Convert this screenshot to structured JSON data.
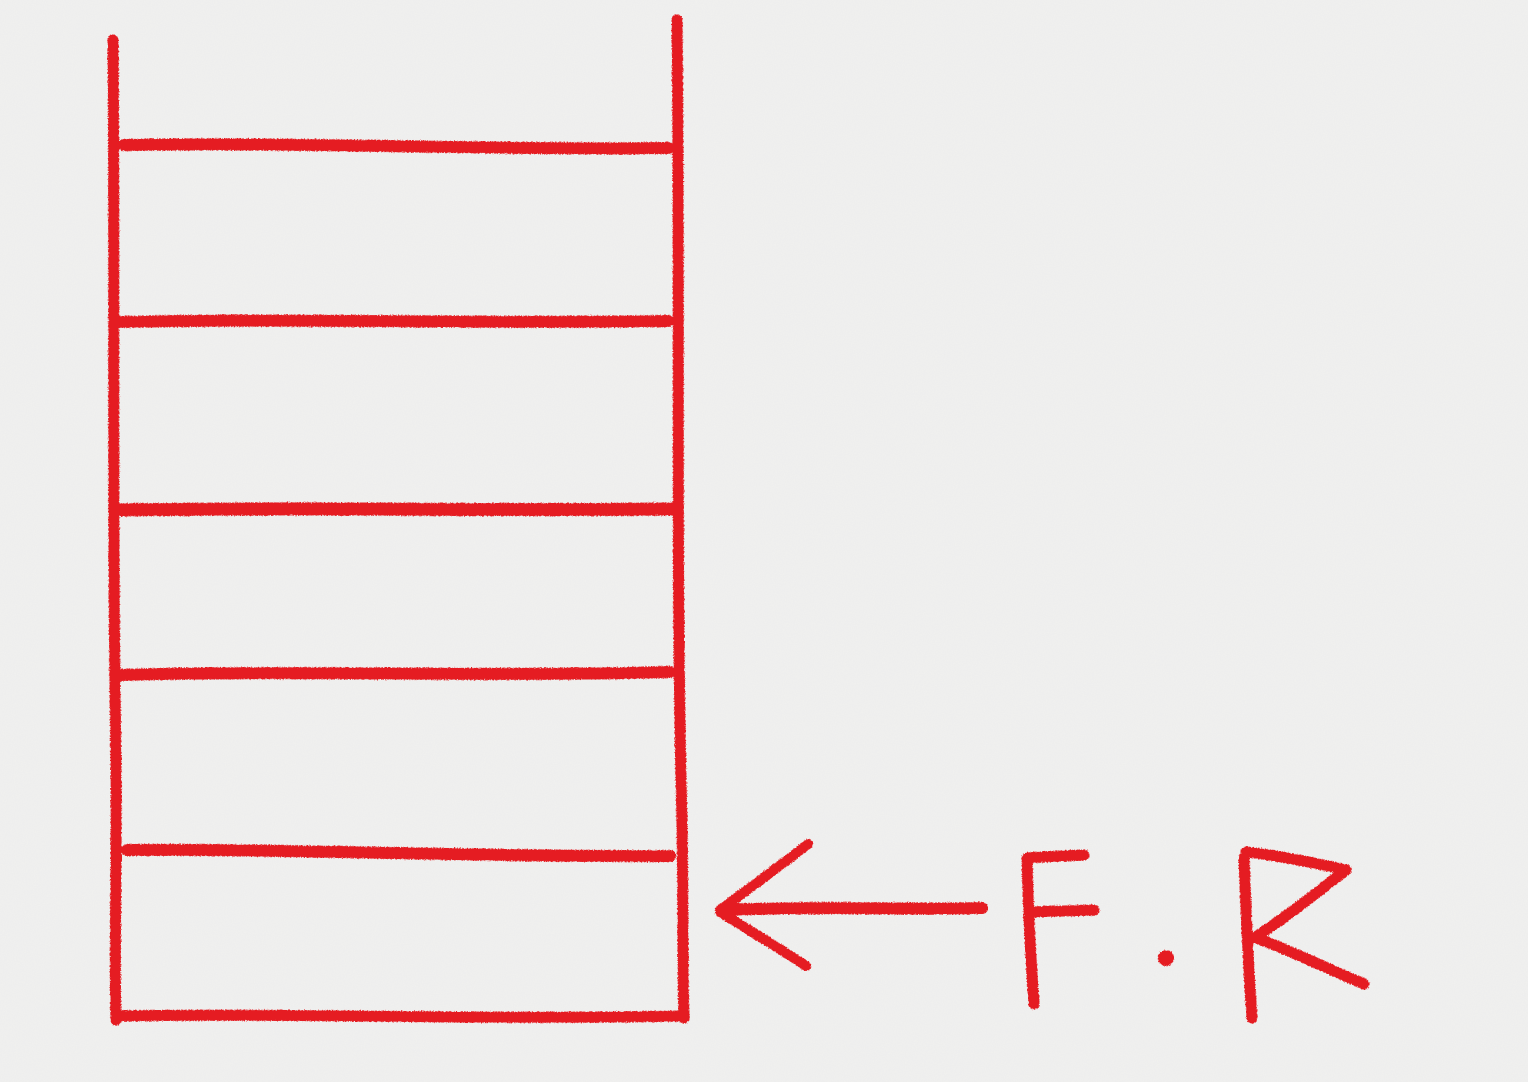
{
  "canvas": {
    "background_color": "#f1f1f0",
    "ink_color": "#e51d23"
  },
  "diagram": {
    "type": "hand-drawn-stack",
    "cells": 5,
    "pointer": {
      "target_cell": 5,
      "arrow_icon": "left-arrow-icon",
      "label_parts": [
        "F",
        ".",
        "R"
      ]
    }
  }
}
